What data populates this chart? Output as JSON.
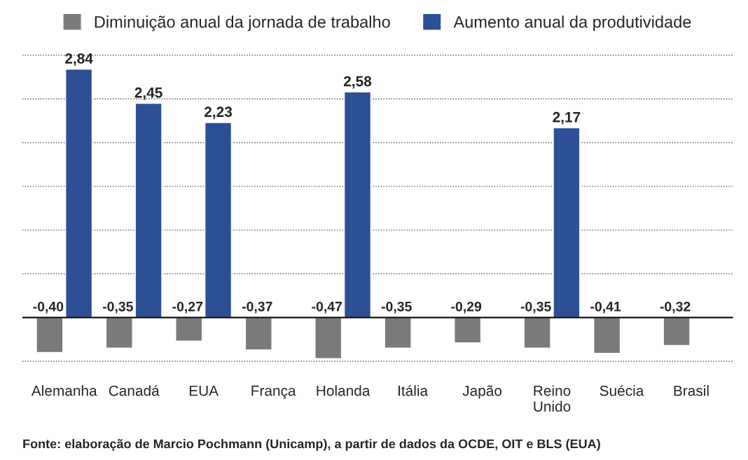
{
  "chart_data": {
    "type": "bar",
    "categories": [
      "Alemanha",
      "Canadá",
      "EUA",
      "França",
      "Holanda",
      "Itália",
      "Japão",
      "Reino\nUnido",
      "Suécia",
      "Brasil"
    ],
    "series": [
      {
        "name": "Diminuição anual da jornada de trabalho",
        "color": "#7a7a7a",
        "values": [
          -0.4,
          -0.35,
          -0.27,
          -0.37,
          -0.47,
          -0.35,
          -0.29,
          -0.35,
          -0.41,
          -0.32
        ],
        "value_labels": [
          "-0,40",
          "-0,35",
          "-0,27",
          "-0,37",
          "-0,47",
          "-0,35",
          "-0,29",
          "-0,35",
          "-0,41",
          "-0,32"
        ]
      },
      {
        "name": "Aumento anual da produtividade",
        "color": "#2c4f96",
        "values": [
          2.84,
          2.45,
          2.23,
          null,
          2.58,
          null,
          null,
          2.17,
          null,
          null
        ],
        "value_labels": [
          "2,84",
          "2,45",
          "2,23",
          null,
          "2,58",
          null,
          null,
          "2,17",
          null,
          null
        ]
      }
    ],
    "grid": "y",
    "tick_labels": "x",
    "legend": "top",
    "annotations": [
      "Fonte: elaboração de Marcio Pochmann (Unicamp), a partir de dados da OCDE, OIT e BLS (EUA)"
    ]
  }
}
